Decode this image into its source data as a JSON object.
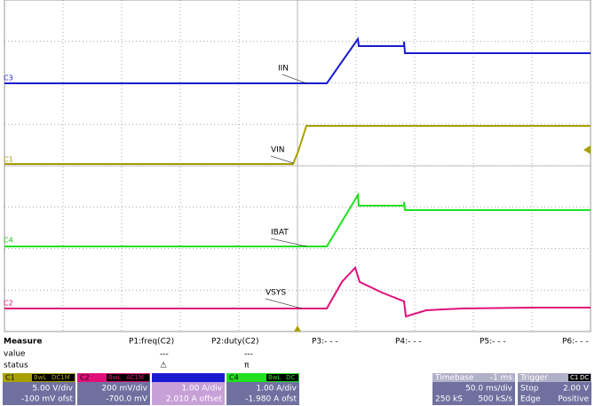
{
  "traces": [
    {
      "label": "IIN",
      "channel": "C3"
    },
    {
      "label": "VIN",
      "channel": "C1"
    },
    {
      "label": "IBAT",
      "channel": "C4"
    },
    {
      "label": "VSYS",
      "channel": "C2"
    }
  ],
  "measure": {
    "title": "Measure",
    "row_labels": [
      "value",
      "status"
    ],
    "params": [
      "P1:freq(C2)",
      "P2:duty(C2)",
      "P3:- - -",
      "P4:- - -",
      "P5:- - -",
      "P6:- - -"
    ],
    "values": [
      "---",
      "---"
    ]
  },
  "channels": [
    {
      "name": "C1",
      "bw": "BwL",
      "coupling": "DC1M",
      "scale": "5.00 V/div",
      "offset": "-100 mV ofst"
    },
    {
      "name": "C2",
      "bw": "BwL",
      "coupling": "AC1M",
      "scale": "200 mV/div",
      "offset": "-700.0 mV"
    },
    {
      "scale": "1.00 A/div",
      "offset": "2.010 A offset"
    },
    {
      "name": "C4",
      "bw": "BwL",
      "coupling": "DC",
      "scale": "1.00 A/div",
      "offset": "-1.980 A ofst"
    }
  ],
  "timebase": {
    "title": "Timebase",
    "delay": "-1 ms",
    "scale": "50.0 ms/div",
    "samples": "250 kS",
    "rate": "500 kS/s"
  },
  "trigger": {
    "title": "Trigger",
    "source": "C1",
    "coupling": "DC",
    "mode": "Stop",
    "level": "2.00 V",
    "type": "Edge",
    "slope": "Positive"
  }
}
